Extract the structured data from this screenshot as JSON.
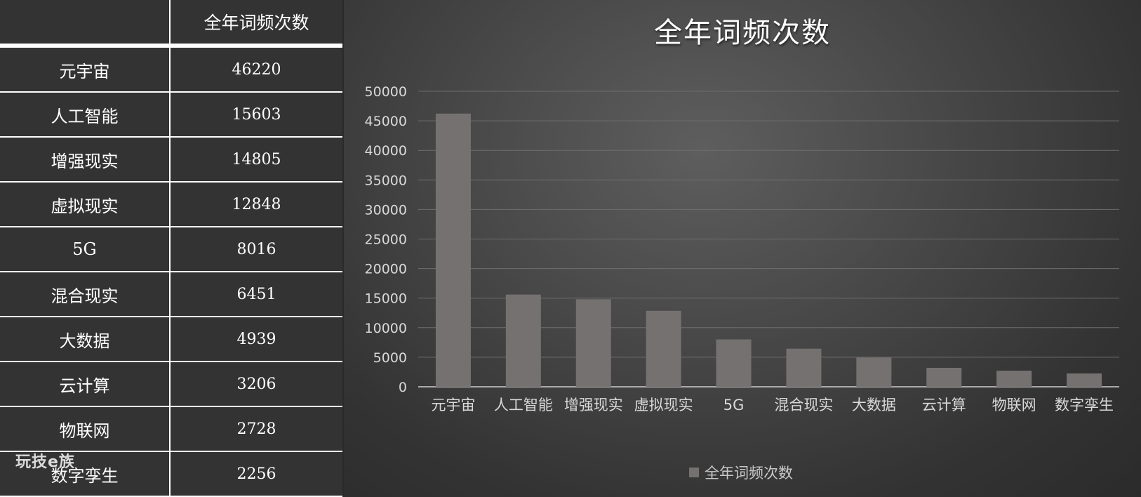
{
  "table": {
    "header": "全年词频次数",
    "rows": [
      {
        "term": "元宇宙",
        "count": "46220"
      },
      {
        "term": "人工智能",
        "count": "15603"
      },
      {
        "term": "增强现实",
        "count": "14805"
      },
      {
        "term": "虚拟现实",
        "count": "12848"
      },
      {
        "term": "5G",
        "count": "8016"
      },
      {
        "term": "混合现实",
        "count": "6451"
      },
      {
        "term": "大数据",
        "count": "4939"
      },
      {
        "term": "云计算",
        "count": "3206"
      },
      {
        "term": "物联网",
        "count": "2728"
      },
      {
        "term": "数字孪生",
        "count": "2256"
      }
    ]
  },
  "watermark": "玩技e族",
  "colors": {
    "bar": "#767171",
    "grid": "#6e6e6e",
    "axis": "#cfcfcf",
    "tick_text": "#d9d9d9"
  },
  "chart_data": {
    "type": "bar",
    "title": "全年词频次数",
    "categories": [
      "元宇宙",
      "人工智能",
      "增强现实",
      "虚拟现实",
      "5G",
      "混合现实",
      "大数据",
      "云计算",
      "物联网",
      "数字孪生"
    ],
    "series": [
      {
        "name": "全年词频次数",
        "values": [
          46220,
          15603,
          14805,
          12848,
          8016,
          6451,
          4939,
          3206,
          2728,
          2256
        ]
      }
    ],
    "ylim": [
      0,
      50000
    ],
    "yticks": [
      "0",
      "5000",
      "10000",
      "15000",
      "20000",
      "25000",
      "30000",
      "35000",
      "40000",
      "45000",
      "50000"
    ],
    "grid": true,
    "legend": "bottom"
  }
}
